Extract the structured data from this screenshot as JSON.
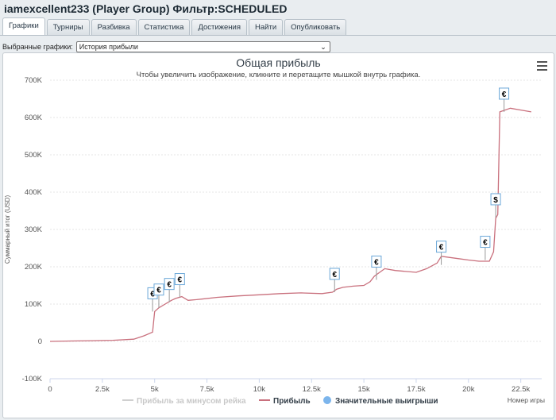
{
  "header": {
    "title": "iamexcellent233 (Player Group) Фильтр:SCHEDULED"
  },
  "tabs": [
    {
      "label": "Графики",
      "active": true
    },
    {
      "label": "Турниры"
    },
    {
      "label": "Разбивка"
    },
    {
      "label": "Статистика"
    },
    {
      "label": "Достижения"
    },
    {
      "label": "Найти"
    },
    {
      "label": "Опубликовать"
    }
  ],
  "selector": {
    "label": "Выбранные графики:",
    "value": "История прибыли"
  },
  "chart_data": {
    "type": "line",
    "title": "Общая прибыль",
    "subtitle": "Чтобы увеличить изображение, кликните и перетащите мышкой внутрь графика.",
    "ylabel": "Суммарный итог (USD)",
    "xlabel": "Номер игры",
    "xlim": [
      0,
      23500
    ],
    "ylim": [
      -100000,
      700000
    ],
    "x_ticks": [
      "0",
      "2.5k",
      "5k",
      "7.5k",
      "10k",
      "12.5k",
      "15k",
      "17.5k",
      "20k",
      "22.5k"
    ],
    "y_ticks": [
      "-100K",
      "0",
      "100K",
      "200K",
      "300K",
      "400K",
      "500K",
      "600K",
      "700K"
    ],
    "grid": true,
    "legend": [
      "Прибыль за минусом рейка",
      "Прибыль",
      "Значительные выигрыши"
    ],
    "legend_position": "bottom-center",
    "series": [
      {
        "name": "Прибыль",
        "color": "#c9707d",
        "points": [
          [
            0,
            0
          ],
          [
            1000,
            1000
          ],
          [
            2000,
            2000
          ],
          [
            3000,
            3000
          ],
          [
            4000,
            6000
          ],
          [
            4500,
            15000
          ],
          [
            4900,
            25000
          ],
          [
            5000,
            80000
          ],
          [
            5200,
            90000
          ],
          [
            5500,
            100000
          ],
          [
            5800,
            110000
          ],
          [
            6000,
            115000
          ],
          [
            6300,
            120000
          ],
          [
            6600,
            110000
          ],
          [
            7000,
            112000
          ],
          [
            8000,
            118000
          ],
          [
            9000,
            122000
          ],
          [
            10000,
            125000
          ],
          [
            11000,
            128000
          ],
          [
            12000,
            130000
          ],
          [
            13000,
            128000
          ],
          [
            13500,
            132000
          ],
          [
            13700,
            140000
          ],
          [
            14000,
            145000
          ],
          [
            14500,
            148000
          ],
          [
            15000,
            150000
          ],
          [
            15300,
            160000
          ],
          [
            15500,
            175000
          ],
          [
            16000,
            195000
          ],
          [
            16500,
            190000
          ],
          [
            17500,
            185000
          ],
          [
            18000,
            195000
          ],
          [
            18500,
            210000
          ],
          [
            18700,
            228000
          ],
          [
            19500,
            222000
          ],
          [
            20000,
            218000
          ],
          [
            20500,
            215000
          ],
          [
            21000,
            215000
          ],
          [
            21200,
            240000
          ],
          [
            21300,
            330000
          ],
          [
            21400,
            340000
          ],
          [
            21500,
            615000
          ],
          [
            22000,
            625000
          ],
          [
            22500,
            620000
          ],
          [
            23000,
            615000
          ]
        ]
      },
      {
        "name": "Значительные выигрыши",
        "color": "#7cb5ec",
        "points": [
          [
            4900,
            80000,
            "€"
          ],
          [
            5200,
            90000,
            "€"
          ],
          [
            5700,
            105000,
            "€"
          ],
          [
            6200,
            118000,
            "€"
          ],
          [
            13600,
            132000,
            "€"
          ],
          [
            15600,
            165000,
            "€"
          ],
          [
            18700,
            205000,
            "€"
          ],
          [
            20800,
            218000,
            "€"
          ],
          [
            21300,
            332000,
            "$"
          ],
          [
            21700,
            615000,
            "€"
          ]
        ]
      }
    ]
  }
}
